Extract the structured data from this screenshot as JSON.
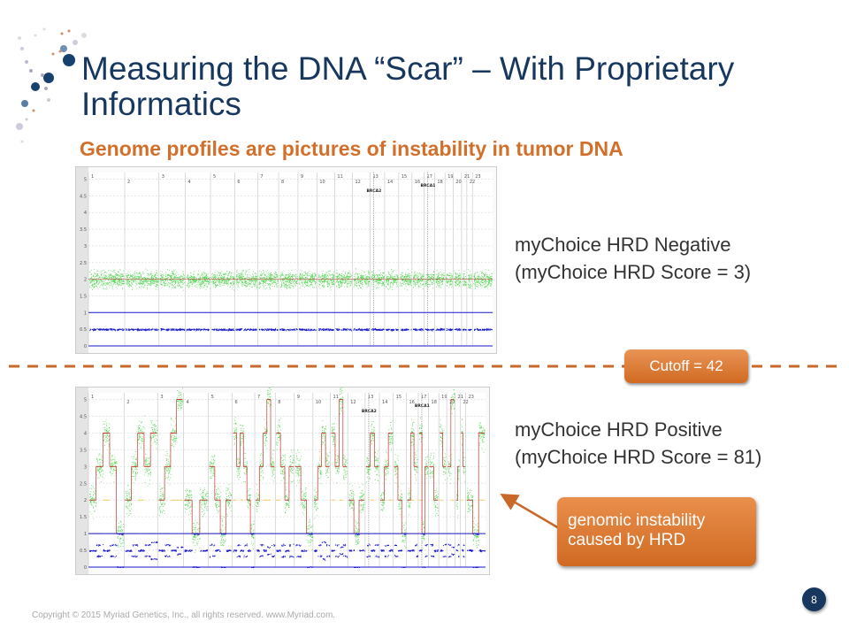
{
  "title": "Measuring the DNA “Scar” – With Proprietary Informatics",
  "subtitle": "Genome profiles are pictures of instability in tumor DNA",
  "negative_label": {
    "line1": "myChoice HRD Negative",
    "line2": "(myChoice HRD Score = 3)"
  },
  "positive_label": {
    "line1": "myChoice HRD Positive",
    "line2": "(myChoice HRD Score = 81)"
  },
  "cutoff_label": "Cutoff = 42",
  "callout_label": "genomic instability caused by HRD",
  "footer": "Copyright © 2015 Myriad Genetics, Inc., all rights reserved.  www.Myriad.com.",
  "page_number": "8",
  "colors": {
    "title": "#17375e",
    "accent": "#d2702b",
    "copy_number_points": "#33cc33",
    "allele_points": "#1a1acc",
    "total_cn_line": "#c0392b",
    "minor_cn_line": "#f0c84a"
  },
  "logo": "dotted helix logo",
  "chart_data": [
    {
      "type": "scatter",
      "name_shown": "",
      "y_ticks": [
        "0",
        "0.5",
        "1",
        "1.5",
        "2",
        "2.5",
        "3",
        "3.5",
        "4",
        "4.5",
        "5"
      ],
      "ylim": [
        0,
        5.2
      ],
      "chromosomes": [
        "1",
        "2",
        "3",
        "4",
        "5",
        "6",
        "7",
        "8",
        "9",
        "10",
        "11",
        "12",
        "13",
        "14",
        "15",
        "16",
        "17",
        "18",
        "19",
        "20",
        "21",
        "22",
        "23"
      ],
      "gene_labels": [
        {
          "label": "BRCA2",
          "chromosome": "13"
        },
        {
          "label": "BRCA1",
          "chromosome": "17"
        }
      ],
      "copy_number_level": 2,
      "allele_fraction_levels": [
        0,
        0.5,
        1
      ]
    },
    {
      "type": "scatter",
      "y_ticks": [
        "0",
        "0.5",
        "1",
        "1.5",
        "2",
        "2.5",
        "3",
        "3.5",
        "4",
        "4.5",
        "5"
      ],
      "ylim": [
        0,
        5.2
      ],
      "chromosomes": [
        "1",
        "2",
        "3",
        "4",
        "5",
        "6",
        "7",
        "8",
        "9",
        "10",
        "11",
        "12",
        "13",
        "14",
        "15",
        "16",
        "17",
        "18",
        "19",
        "20",
        "21",
        "22",
        "23"
      ],
      "gene_labels": [
        {
          "label": "BRCA2",
          "chromosome": "13"
        },
        {
          "label": "BRCA1",
          "chromosome": "17"
        }
      ],
      "segments_total_minor_cn": [
        [
          [
            2,
            1
          ],
          [
            3,
            1
          ],
          [
            4,
            2
          ],
          [
            3,
            1
          ],
          [
            1,
            0
          ]
        ],
        [
          [
            2,
            1
          ],
          [
            3,
            1
          ],
          [
            4,
            2
          ],
          [
            3,
            1
          ],
          [
            4,
            1
          ]
        ],
        [
          [
            2,
            1
          ],
          [
            3,
            1
          ],
          [
            4,
            2
          ],
          [
            5,
            2
          ]
        ],
        [
          [
            2,
            1
          ],
          [
            1,
            0
          ],
          [
            2,
            1
          ]
        ],
        [
          [
            3,
            1
          ],
          [
            2,
            1
          ],
          [
            1,
            0
          ],
          [
            2,
            1
          ]
        ],
        [
          [
            4,
            2
          ],
          [
            3,
            1
          ],
          [
            4,
            2
          ],
          [
            3,
            1
          ],
          [
            2,
            1
          ],
          [
            1,
            0
          ]
        ],
        [
          [
            2,
            1
          ],
          [
            3,
            1
          ],
          [
            4,
            2
          ],
          [
            5,
            2
          ],
          [
            3,
            1
          ]
        ],
        [
          [
            4,
            2
          ],
          [
            3,
            1
          ],
          [
            2,
            1
          ],
          [
            3,
            1
          ]
        ],
        [
          [
            3,
            1
          ],
          [
            2,
            1
          ],
          [
            1,
            0
          ]
        ],
        [
          [
            2,
            1
          ],
          [
            3,
            1
          ],
          [
            4,
            1
          ],
          [
            3,
            1
          ]
        ],
        [
          [
            4,
            2
          ],
          [
            3,
            1
          ],
          [
            5,
            2
          ],
          [
            3,
            1
          ]
        ],
        [
          [
            2,
            1
          ],
          [
            1,
            0
          ],
          [
            2,
            1
          ]
        ],
        [
          [
            3,
            1
          ],
          [
            4,
            2
          ],
          [
            3,
            1
          ]
        ],
        [
          [
            2,
            1
          ],
          [
            3,
            1
          ],
          [
            4,
            2
          ]
        ],
        [
          [
            3,
            1
          ],
          [
            2,
            1
          ],
          [
            1,
            0
          ]
        ],
        [
          [
            2,
            1
          ],
          [
            4,
            2
          ],
          [
            3,
            1
          ]
        ],
        [
          [
            4,
            2
          ],
          [
            1,
            0
          ],
          [
            3,
            1
          ]
        ],
        [
          [
            3,
            1
          ],
          [
            2,
            1
          ]
        ],
        [
          [
            4,
            2
          ],
          [
            3,
            1
          ]
        ],
        [
          [
            3,
            1
          ],
          [
            5,
            2
          ]
        ],
        [
          [
            2,
            1
          ],
          [
            3,
            1
          ]
        ],
        [
          [
            4,
            2
          ],
          [
            3,
            1
          ]
        ],
        [
          [
            2,
            1
          ],
          [
            1,
            0
          ],
          [
            4,
            2
          ]
        ]
      ]
    }
  ]
}
